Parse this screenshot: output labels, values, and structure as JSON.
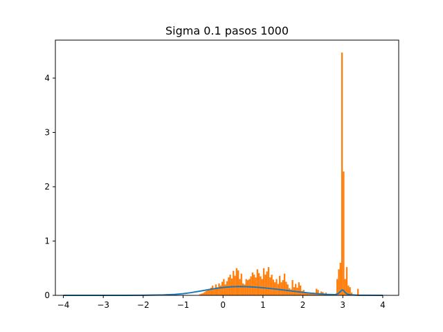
{
  "chart_data": {
    "type": "bar",
    "title": "Sigma 0.1 pasos 1000",
    "xlabel": "",
    "ylabel": "",
    "xlim": [
      -4.2,
      4.4
    ],
    "ylim": [
      0,
      4.7
    ],
    "grid": false,
    "legend": "none",
    "x_ticks": [
      {
        "value": -4,
        "label": "−4"
      },
      {
        "value": -3,
        "label": "−3"
      },
      {
        "value": -2,
        "label": "−2"
      },
      {
        "value": -1,
        "label": "−1"
      },
      {
        "value": 0,
        "label": "0"
      },
      {
        "value": 1,
        "label": "1"
      },
      {
        "value": 2,
        "label": "2"
      },
      {
        "value": 3,
        "label": "3"
      },
      {
        "value": 4,
        "label": "4"
      }
    ],
    "y_ticks": [
      {
        "value": 0,
        "label": "0"
      },
      {
        "value": 1,
        "label": "1"
      },
      {
        "value": 2,
        "label": "2"
      },
      {
        "value": 3,
        "label": "3"
      },
      {
        "value": 4,
        "label": "4"
      }
    ],
    "colors": {
      "histogram": "#ff7f0e",
      "curve": "#1f77b4"
    },
    "bin_width": 0.04,
    "histogram": {
      "bin_left_edges": [
        -0.6,
        -0.56,
        -0.52,
        -0.48,
        -0.44,
        -0.4,
        -0.36,
        -0.32,
        -0.28,
        -0.24,
        -0.2,
        -0.16,
        -0.12,
        -0.08,
        -0.04,
        0,
        0.04,
        0.08,
        0.12,
        0.16,
        0.2,
        0.24,
        0.28,
        0.32,
        0.36,
        0.4,
        0.44,
        0.48,
        0.52,
        0.56,
        0.6,
        0.64,
        0.68,
        0.72,
        0.76,
        0.8,
        0.84,
        0.88,
        0.92,
        0.96,
        1,
        1.04,
        1.08,
        1.12,
        1.16,
        1.2,
        1.24,
        1.28,
        1.32,
        1.36,
        1.4,
        1.44,
        1.48,
        1.52,
        1.56,
        1.6,
        1.64,
        1.68,
        1.72,
        1.76,
        1.8,
        1.84,
        1.88,
        1.92,
        1.96,
        2,
        2.04,
        2.08,
        2.12,
        2.16,
        2.2,
        2.24,
        2.28,
        2.32,
        2.36,
        2.4,
        2.44,
        2.48,
        2.52,
        2.56,
        2.6,
        2.64,
        2.68,
        2.72,
        2.76,
        2.8,
        2.84,
        2.88,
        2.92,
        2.96,
        3,
        3.04,
        3.08,
        3.12,
        3.16,
        3.2,
        3.24,
        3.28,
        3.32,
        3.36
      ],
      "values": [
        0.02,
        0.03,
        0.04,
        0.06,
        0.08,
        0.1,
        0.12,
        0.14,
        0.18,
        0.12,
        0.2,
        0.15,
        0.22,
        0.18,
        0.25,
        0.3,
        0.2,
        0.26,
        0.33,
        0.38,
        0.31,
        0.45,
        0.36,
        0.5,
        0.46,
        0.3,
        0.4,
        0.22,
        0.2,
        0.3,
        0.28,
        0.3,
        0.35,
        0.42,
        0.38,
        0.33,
        0.48,
        0.41,
        0.35,
        0.3,
        0.5,
        0.38,
        0.44,
        0.52,
        0.33,
        0.38,
        0.29,
        0.24,
        0.3,
        0.21,
        0.36,
        0.24,
        0.28,
        0.4,
        0.25,
        0.2,
        0.13,
        0.11,
        0.28,
        0.15,
        0.21,
        0.14,
        0.24,
        0.18,
        0.08,
        0.1,
        0.05,
        0.04,
        0.03,
        0.03,
        0.04,
        0.05,
        0.03,
        0.12,
        0.1,
        0.02,
        0.07,
        0.06,
        0.03,
        0.05,
        0.02,
        0.01,
        0.02,
        0.01,
        0.02,
        0.01,
        0.3,
        0.48,
        0.6,
        4.47,
        2.28,
        0.3,
        0.52,
        0.18,
        0.15,
        0.05,
        0.02,
        0.01,
        0.01,
        0.12
      ]
    },
    "curve": {
      "x": [
        -4,
        -3.5,
        -3,
        -2.5,
        -2,
        -1.5,
        -1.2,
        -1,
        -0.8,
        -0.6,
        -0.4,
        -0.2,
        0,
        0.2,
        0.4,
        0.6,
        0.8,
        1,
        1.2,
        1.4,
        1.6,
        1.8,
        2,
        2.2,
        2.4,
        2.6,
        2.8,
        2.88,
        2.94,
        2.98,
        3.02,
        3.06,
        3.12,
        3.2,
        3.4,
        3.6,
        4
      ],
      "y": [
        0,
        0,
        0,
        0,
        0.002,
        0.008,
        0.018,
        0.03,
        0.05,
        0.075,
        0.1,
        0.125,
        0.145,
        0.158,
        0.163,
        0.16,
        0.152,
        0.14,
        0.125,
        0.108,
        0.09,
        0.072,
        0.055,
        0.04,
        0.028,
        0.018,
        0.012,
        0.03,
        0.07,
        0.1,
        0.09,
        0.05,
        0.02,
        0.008,
        0.002,
        0.001,
        0
      ]
    }
  }
}
